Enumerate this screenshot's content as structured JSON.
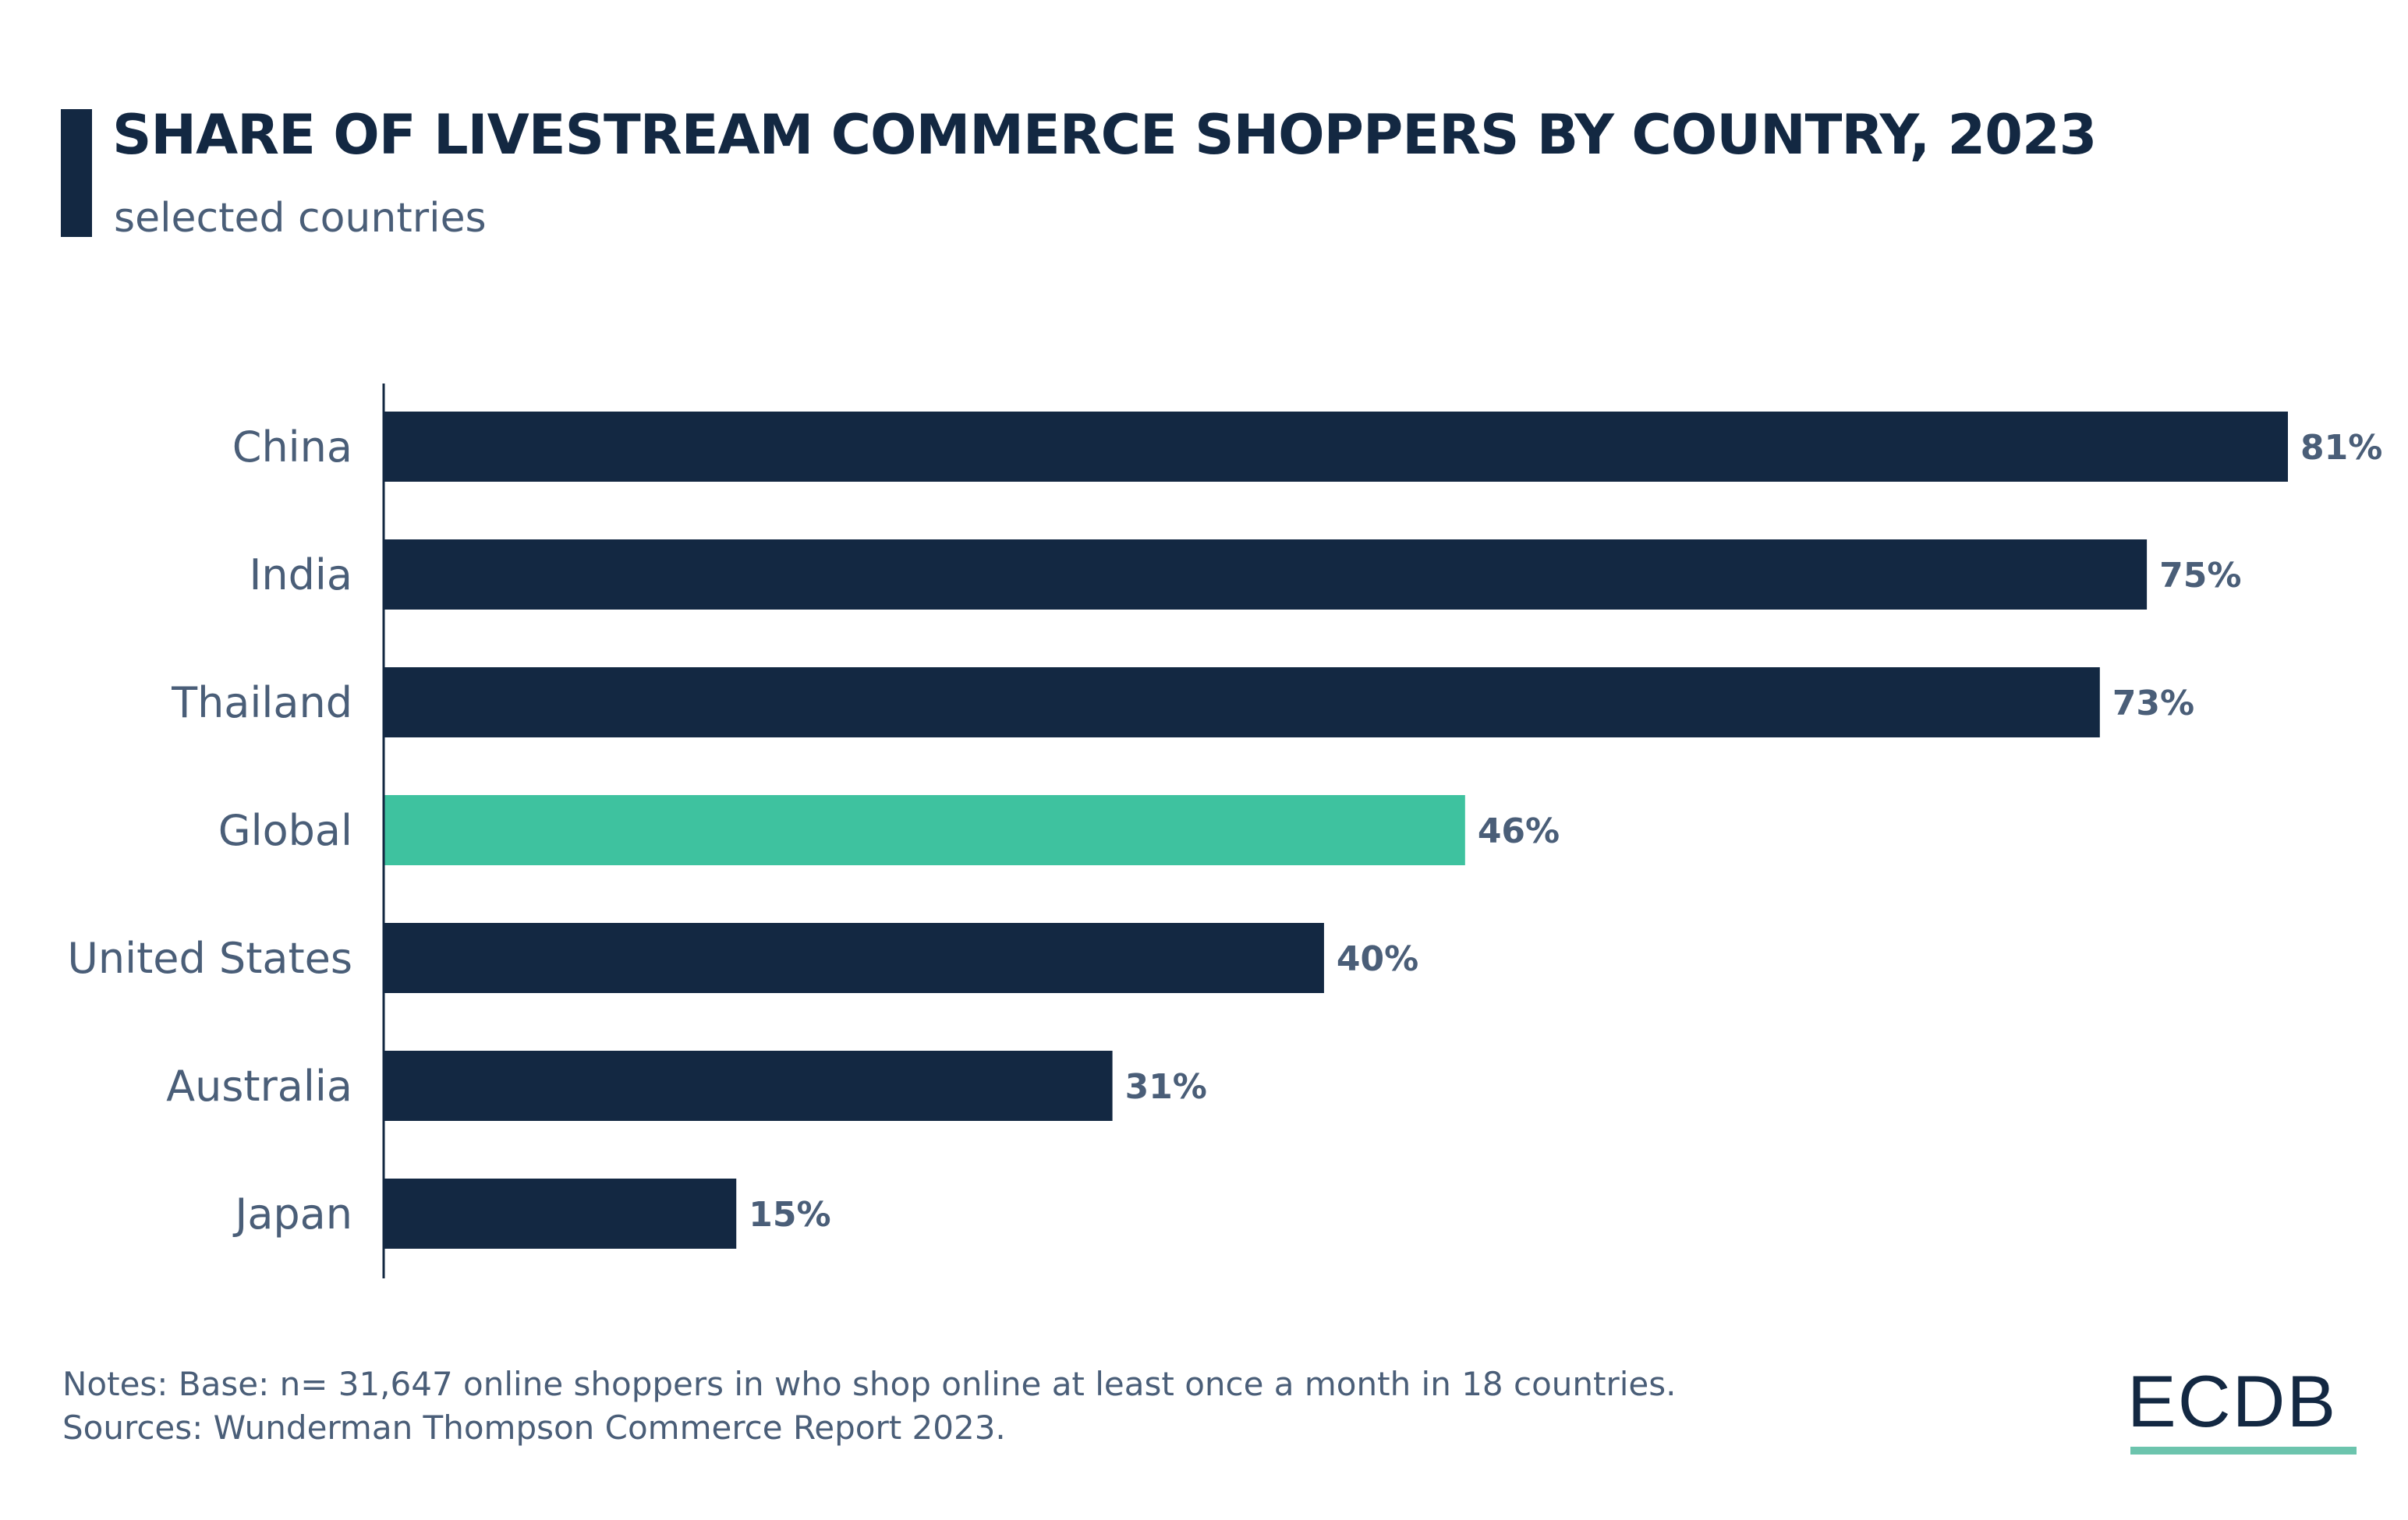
{
  "chart_data": {
    "type": "bar",
    "orientation": "horizontal",
    "title": "SHARE OF LIVESTREAM COMMERCE SHOPPERS BY COUNTRY, 2023",
    "subtitle": "selected countries",
    "categories": [
      "China",
      "India",
      "Thailand",
      "Global",
      "United States",
      "Australia",
      "Japan"
    ],
    "values": [
      81,
      75,
      73,
      46,
      40,
      31,
      15
    ],
    "value_labels": [
      "81%",
      "75%",
      "73%",
      "46%",
      "40%",
      "31%",
      "15%"
    ],
    "unit": "%",
    "xlim": [
      0,
      100
    ],
    "grid": false,
    "highlight": "Global",
    "colors": {
      "bar": "#132842",
      "highlight": "#3ec29f",
      "label": "#4a5e78"
    }
  },
  "notes": "Notes: Base: n= 31,647 online shoppers in who shop online at least once a month in 18 countries.",
  "sources": "Sources: Wunderman Thompson Commerce Report 2023.",
  "logo": "ECDB"
}
